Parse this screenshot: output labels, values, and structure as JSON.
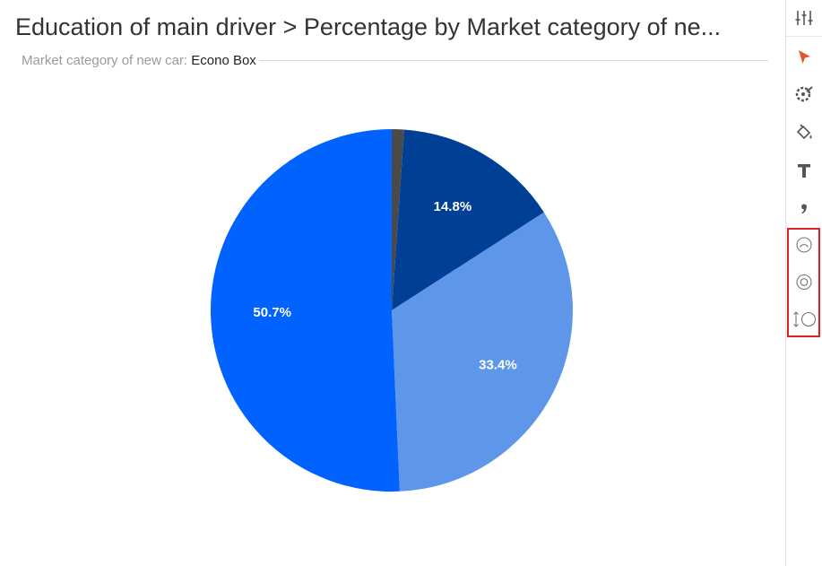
{
  "header": {
    "title": "Education of main driver > Percentage by Market category of ne...",
    "subtitle_label": "Market category of new car:",
    "subtitle_value": "Econo Box"
  },
  "chart_data": {
    "type": "pie",
    "title": "Education of main driver > Percentage by Market category of ne...",
    "start_angle_deg": 0,
    "slices": [
      {
        "value": 1.1,
        "label": "",
        "color": "#4a4a4a"
      },
      {
        "value": 14.8,
        "label": "14.8%",
        "color": "#003f96"
      },
      {
        "value": 33.4,
        "label": "33.4%",
        "color": "#5e96ea"
      },
      {
        "value": 50.7,
        "label": "50.7%",
        "color": "#0062ff"
      }
    ]
  },
  "toolbar": {
    "accent_color": "#e8572a",
    "highlight_color": "#e02020",
    "tools": [
      {
        "icon": "sliders-icon"
      },
      {
        "icon": "cursor-arrow-icon",
        "active": true
      },
      {
        "icon": "color-palette-icon"
      },
      {
        "icon": "paint-bucket-icon"
      },
      {
        "icon": "text-format-icon"
      },
      {
        "icon": "comma-format-icon"
      },
      {
        "icon": "semi-circle-gauge-icon"
      },
      {
        "icon": "donut-icon"
      },
      {
        "icon": "radius-icon"
      }
    ]
  }
}
